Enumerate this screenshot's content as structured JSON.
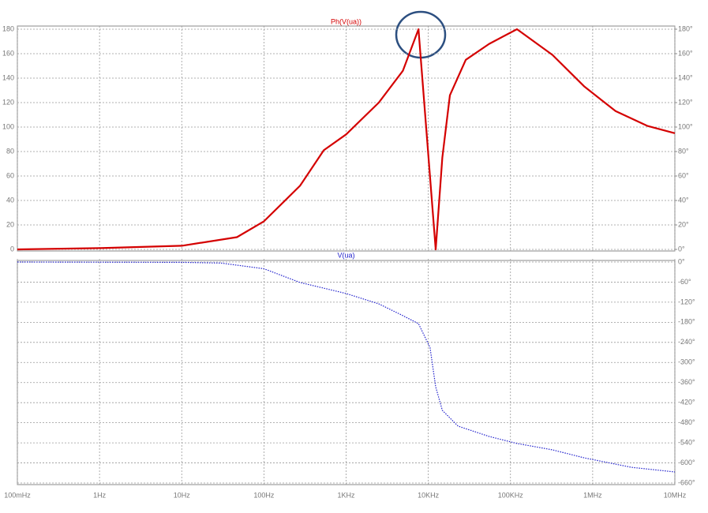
{
  "chart_data": [
    {
      "type": "line",
      "title": "Ph(V(ua))",
      "log_x": true,
      "xlim": [
        0.1,
        10000000
      ],
      "x": [
        0.1,
        1,
        10,
        47,
        100,
        275,
        535,
        1000,
        2500,
        4900,
        7600,
        12300,
        14800,
        18300,
        28600,
        55000,
        120000,
        325000,
        795000,
        1900000,
        4600000,
        10000000
      ],
      "series": [
        {
          "name": "Ph(V(ua))",
          "color": "#d40000",
          "values": [
            0,
            1,
            3,
            10,
            23,
            52,
            81,
            94,
            120,
            146,
            180,
            0,
            75,
            126,
            155,
            168,
            180,
            159,
            133,
            113,
            101,
            95
          ]
        }
      ],
      "ylim": [
        0,
        180
      ],
      "yticks": [
        0,
        20,
        40,
        60,
        80,
        100,
        120,
        140,
        160,
        180
      ],
      "y2lim": [
        0,
        180
      ],
      "y2ticks": [
        {
          "value": 0,
          "label": "0°"
        },
        {
          "value": 20,
          "label": "20°"
        },
        {
          "value": 40,
          "label": "40°"
        },
        {
          "value": 60,
          "label": "60°"
        },
        {
          "value": 80,
          "label": "80°"
        },
        {
          "value": 100,
          "label": "100°"
        },
        {
          "value": 120,
          "label": "120°"
        },
        {
          "value": 140,
          "label": "140°"
        },
        {
          "value": 160,
          "label": "160°"
        },
        {
          "value": 180,
          "label": "180°"
        }
      ],
      "grid": true
    },
    {
      "type": "line",
      "title": "V(ua)",
      "log_x": true,
      "xlim": [
        0.1,
        10000000
      ],
      "xticks": [
        {
          "value": 0.1,
          "label": "100mHz"
        },
        {
          "value": 1,
          "label": "1Hz"
        },
        {
          "value": 10,
          "label": "10Hz"
        },
        {
          "value": 100,
          "label": "100Hz"
        },
        {
          "value": 1000,
          "label": "1KHz"
        },
        {
          "value": 10000,
          "label": "10KHz"
        },
        {
          "value": 100000,
          "label": "100KHz"
        },
        {
          "value": 1000000,
          "label": "1MHz"
        },
        {
          "value": 10000000,
          "label": "10MHz"
        }
      ],
      "x": [
        0.1,
        10,
        30,
        100,
        275,
        1000,
        2500,
        4900,
        7600,
        10500,
        12300,
        14800,
        23000,
        55000,
        120000,
        325000,
        795000,
        2960000,
        10000000
      ],
      "series": [
        {
          "name": "V(ua)",
          "color": "#2020cc",
          "values": [
            0,
            -1,
            -3,
            -20,
            -61,
            -94,
            -125,
            -160,
            -184,
            -255,
            -373,
            -443,
            -490,
            -521,
            -542,
            -561,
            -585,
            -613,
            -627
          ]
        }
      ],
      "y_axis_side": "right",
      "ylim": [
        -660,
        0
      ],
      "yticks": [
        {
          "value": 0,
          "label": "0°"
        },
        {
          "value": -60,
          "label": "-60°"
        },
        {
          "value": -120,
          "label": "-120°"
        },
        {
          "value": -180,
          "label": "-180°"
        },
        {
          "value": -240,
          "label": "-240°"
        },
        {
          "value": -300,
          "label": "-300°"
        },
        {
          "value": -360,
          "label": "-360°"
        },
        {
          "value": -420,
          "label": "-420°"
        },
        {
          "value": -480,
          "label": "-480°"
        },
        {
          "value": -540,
          "label": "-540°"
        },
        {
          "value": -600,
          "label": "-600°"
        },
        {
          "value": -660,
          "label": "-660°"
        }
      ],
      "grid": true
    }
  ]
}
